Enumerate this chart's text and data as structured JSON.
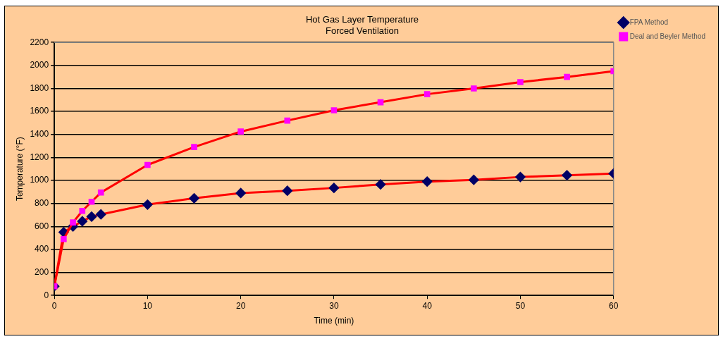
{
  "chart_data": {
    "type": "line",
    "title": "Hot Gas Layer Temperature",
    "subtitle": "Forced Ventilation",
    "xlabel": "Time (min)",
    "ylabel": "Temperature (°F)",
    "x": [
      0,
      1,
      2,
      3,
      4,
      5,
      10,
      15,
      20,
      25,
      30,
      35,
      40,
      45,
      50,
      55,
      60
    ],
    "xlim": [
      0,
      60
    ],
    "xticks": [
      0,
      10,
      20,
      30,
      40,
      50,
      60
    ],
    "ylim": [
      0,
      2200
    ],
    "yticks": [
      0,
      200,
      400,
      600,
      800,
      1000,
      1200,
      1400,
      1600,
      1800,
      2000,
      2200
    ],
    "grid": "y",
    "legend": "right",
    "series": [
      {
        "name": "FPA Method",
        "color": "#000066",
        "marker": "diamond",
        "values": [
          80,
          550,
          600,
          645,
          685,
          705,
          790,
          845,
          890,
          910,
          935,
          965,
          990,
          1005,
          1030,
          1045,
          1060
        ]
      },
      {
        "name": "Deal and Beyler Method",
        "color": "#ff00ff",
        "marker": "square",
        "values": [
          80,
          490,
          635,
          735,
          815,
          895,
          1135,
          1290,
          1425,
          1520,
          1610,
          1680,
          1750,
          1800,
          1855,
          1900,
          1950
        ]
      }
    ]
  }
}
